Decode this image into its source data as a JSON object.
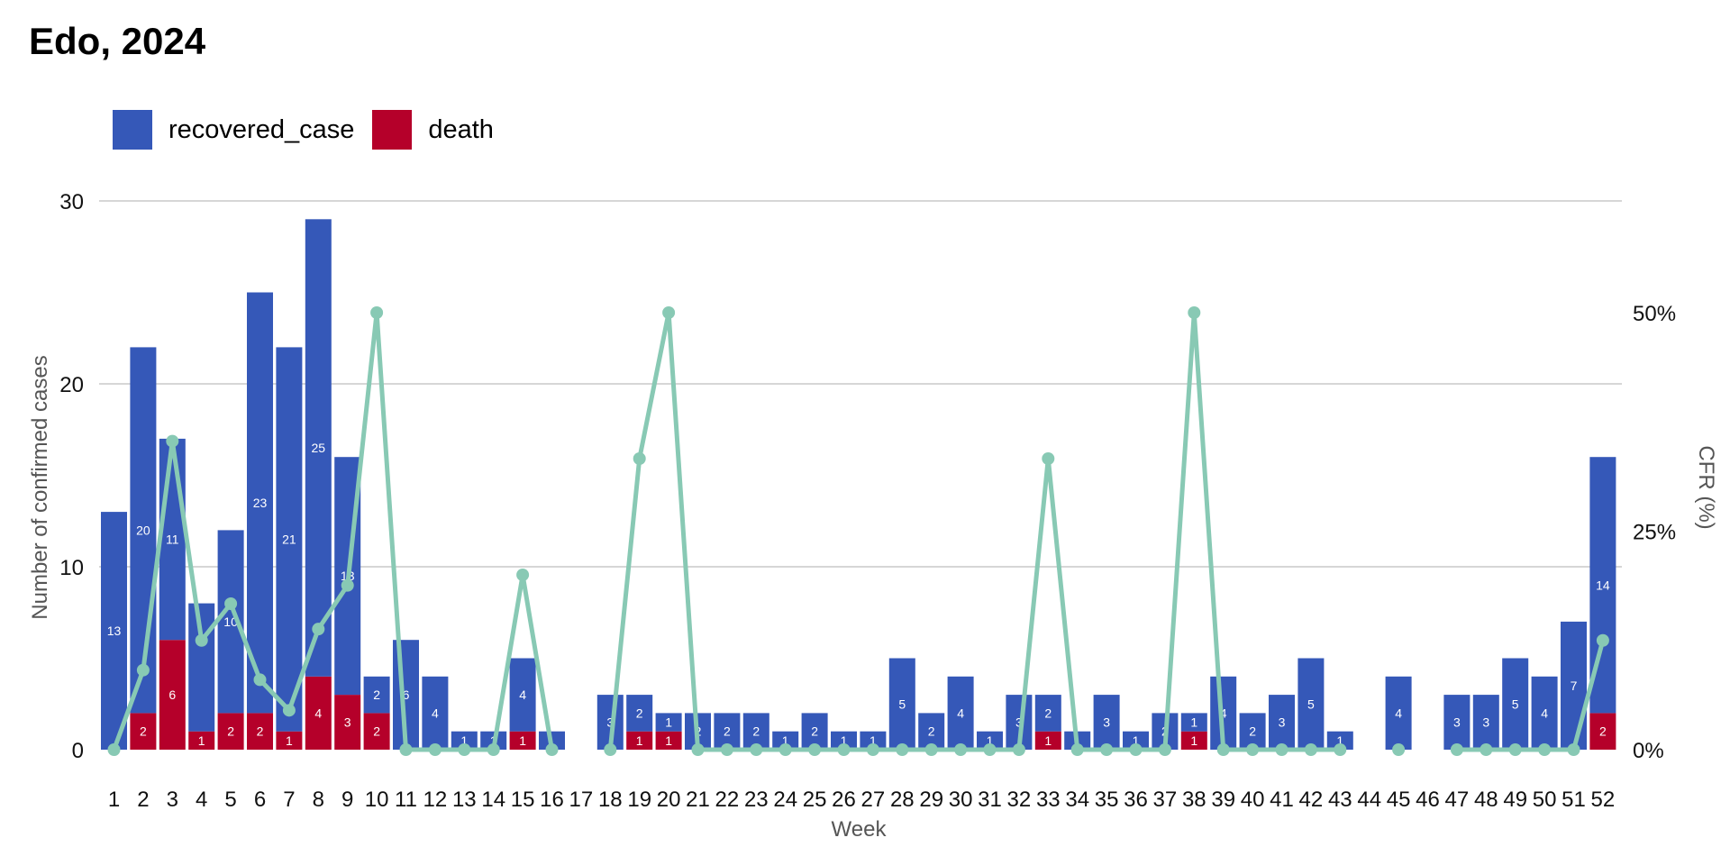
{
  "chart_data": {
    "type": "bar",
    "title": "Edo, 2024",
    "xlabel": "Week",
    "ylabel": "Number of confirmed cases",
    "y2label": "CFR (%)",
    "ylim": [
      0,
      30
    ],
    "y2lim": [
      0,
      50
    ],
    "yticks": [
      "0",
      "10",
      "20",
      "30"
    ],
    "y2ticks": [
      "0%",
      "25%",
      "50%"
    ],
    "y2tick_values": [
      0,
      25,
      50
    ],
    "grid": true,
    "legend_position": "top-left",
    "stacked": true,
    "categories": [
      "1",
      "2",
      "3",
      "4",
      "5",
      "6",
      "7",
      "8",
      "9",
      "10",
      "11",
      "12",
      "13",
      "14",
      "15",
      "16",
      "17",
      "18",
      "19",
      "20",
      "21",
      "22",
      "23",
      "24",
      "25",
      "26",
      "27",
      "28",
      "29",
      "30",
      "31",
      "32",
      "33",
      "34",
      "35",
      "36",
      "37",
      "38",
      "39",
      "40",
      "41",
      "42",
      "43",
      "44",
      "45",
      "46",
      "47",
      "48",
      "49",
      "50",
      "51",
      "52"
    ],
    "series": [
      {
        "name": "recovered_case",
        "color": "#3558b8",
        "values": [
          13,
          20,
          11,
          7,
          10,
          23,
          21,
          25,
          13,
          2,
          6,
          4,
          1,
          1,
          4,
          1,
          0,
          3,
          2,
          1,
          2,
          2,
          2,
          1,
          2,
          1,
          1,
          5,
          2,
          4,
          1,
          3,
          2,
          1,
          3,
          1,
          2,
          1,
          4,
          2,
          3,
          5,
          1,
          0,
          4,
          0,
          3,
          3,
          5,
          4,
          7,
          14
        ],
        "labels": [
          "13",
          "20",
          "11",
          "",
          "10",
          "23",
          "21",
          "25",
          "13",
          "2",
          "6",
          "4",
          "1",
          "1",
          "4",
          "",
          "",
          "3",
          "2",
          "1",
          "2",
          "2",
          "2",
          "1",
          "2",
          "1",
          "1",
          "5",
          "2",
          "4",
          "1",
          "3",
          "2",
          "",
          "3",
          "1",
          "2",
          "1",
          "4",
          "2",
          "3",
          "5",
          "1",
          "",
          "4",
          "",
          "3",
          "3",
          "5",
          "4",
          "7",
          "14"
        ]
      },
      {
        "name": "death",
        "color": "#b5002a",
        "values": [
          0,
          2,
          6,
          1,
          2,
          2,
          1,
          4,
          3,
          2,
          0,
          0,
          0,
          0,
          1,
          0,
          0,
          0,
          1,
          1,
          0,
          0,
          0,
          0,
          0,
          0,
          0,
          0,
          0,
          0,
          0,
          0,
          1,
          0,
          0,
          0,
          0,
          1,
          0,
          0,
          0,
          0,
          0,
          0,
          0,
          0,
          0,
          0,
          0,
          0,
          0,
          2
        ],
        "labels": [
          "",
          "2",
          "6",
          "1",
          "2",
          "2",
          "1",
          "4",
          "3",
          "2",
          "",
          "",
          "",
          "",
          "1",
          "",
          "",
          "",
          "1",
          "1",
          "",
          "",
          "",
          "",
          "",
          "",
          "",
          "",
          "",
          "",
          "",
          "",
          "1",
          "",
          "",
          "",
          "",
          "1",
          "",
          "",
          "",
          "",
          "",
          "",
          "",
          "",
          "",
          "",
          "",
          "",
          "",
          "2"
        ]
      }
    ],
    "cfr": {
      "name": "CFR (%)",
      "color": "#88c9b4",
      "values": [
        0,
        9.1,
        35.3,
        12.5,
        16.7,
        8,
        4.5,
        13.8,
        18.8,
        50,
        0,
        0,
        0,
        0,
        20,
        0,
        null,
        0,
        33.3,
        50,
        0,
        0,
        0,
        0,
        0,
        0,
        0,
        0,
        0,
        0,
        0,
        0,
        33.3,
        0,
        0,
        0,
        0,
        50,
        0,
        0,
        0,
        0,
        0,
        null,
        0,
        null,
        0,
        0,
        0,
        0,
        0,
        12.5
      ]
    }
  }
}
